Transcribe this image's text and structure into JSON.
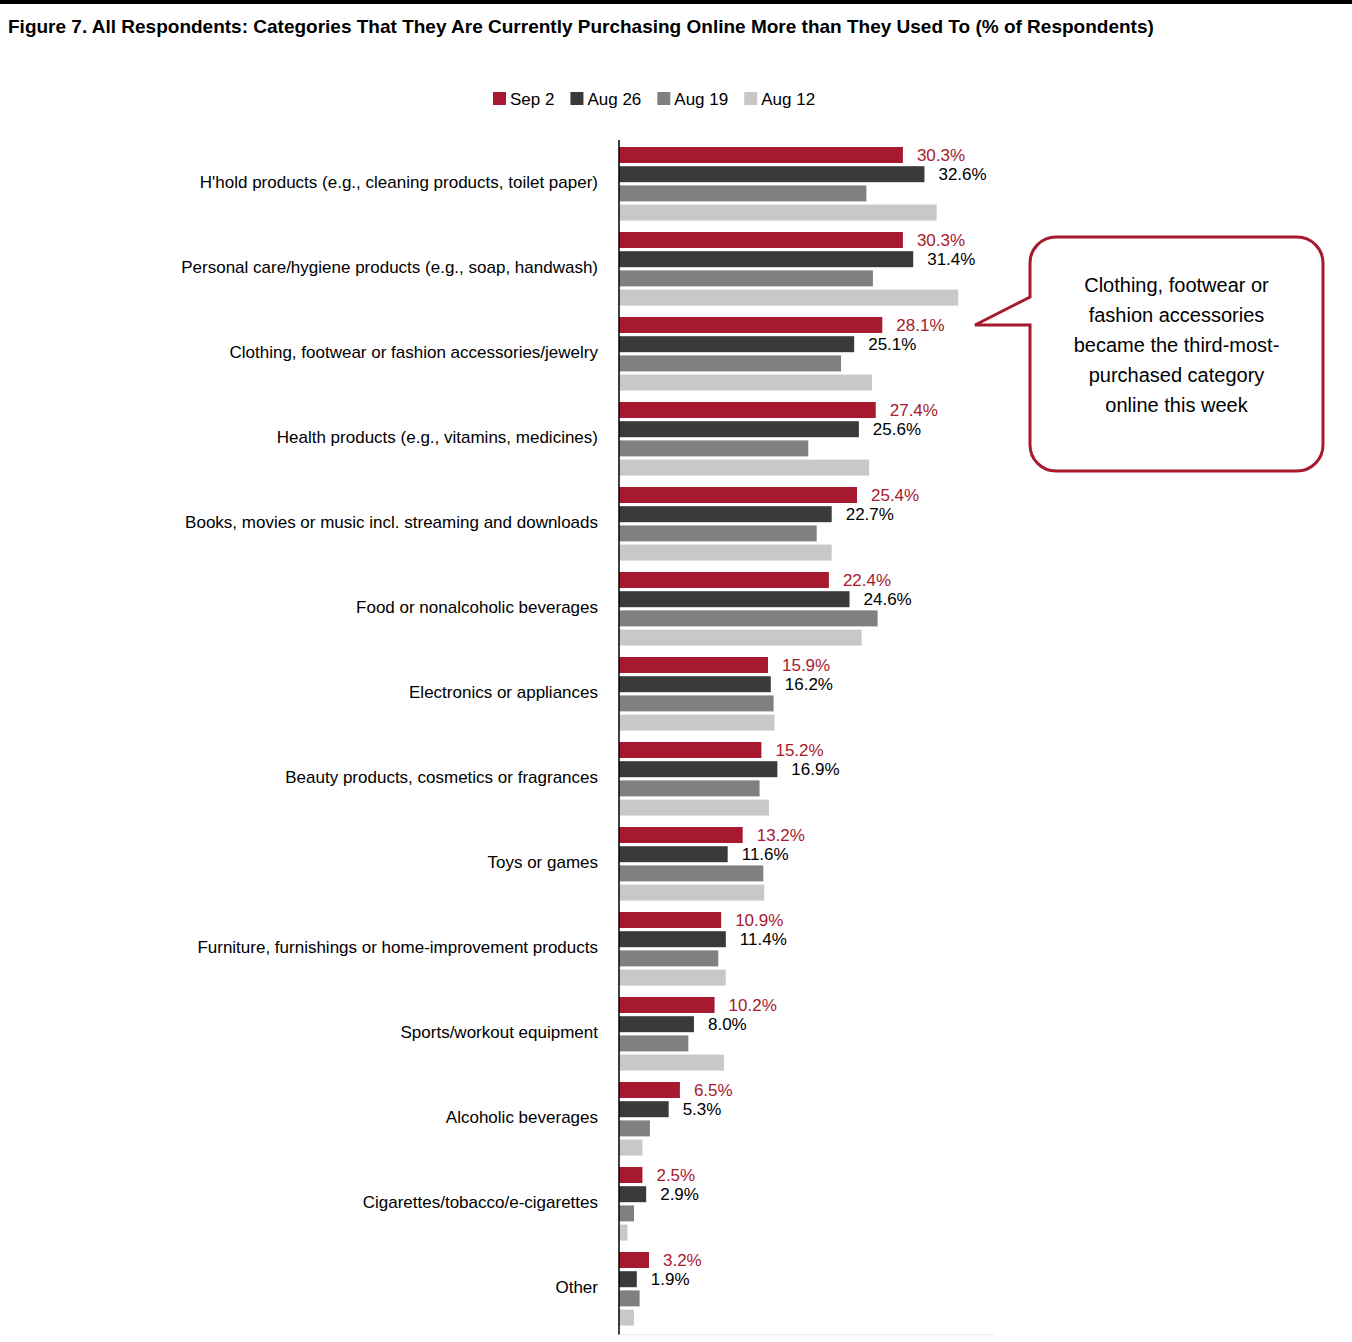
{
  "chart_data": {
    "type": "bar",
    "orientation": "horizontal",
    "title": "Figure 7. All Respondents: Categories That They Are Currently Purchasing Online More than They Used To (% of Respondents)",
    "categories": [
      "H'hold products (e.g., cleaning products, toilet paper)",
      "Personal care/hygiene products (e.g., soap, handwash)",
      "Clothing, footwear or fashion accessories/jewelry",
      "Health products (e.g., vitamins, medicines)",
      "Books, movies or music incl. streaming and downloads",
      "Food or nonalcoholic beverages",
      "Electronics or appliances",
      "Beauty products, cosmetics or fragrances",
      "Toys or games",
      "Furniture, furnishings or home-improvement products",
      "Sports/workout equipment",
      "Alcoholic beverages",
      "Cigarettes/tobacco/e-cigarettes",
      "Other"
    ],
    "series": [
      {
        "name": "Sep 2",
        "color": "#a6192e",
        "data_labels": true,
        "values": [
          30.3,
          30.3,
          28.1,
          27.4,
          25.4,
          22.4,
          15.9,
          15.2,
          13.2,
          10.9,
          10.2,
          6.5,
          2.5,
          3.2
        ],
        "value_labels": [
          "30.3%",
          "30.3%",
          "28.1%",
          "27.4%",
          "25.4%",
          "22.4%",
          "15.9%",
          "15.2%",
          "13.2%",
          "10.9%",
          "10.2%",
          "6.5%",
          "2.5%",
          "3.2%"
        ]
      },
      {
        "name": "Aug 26",
        "color": "#3a3a3a",
        "data_labels": true,
        "values": [
          32.6,
          31.4,
          25.1,
          25.6,
          22.7,
          24.6,
          16.2,
          16.9,
          11.6,
          11.4,
          8.0,
          5.3,
          2.9,
          1.9
        ],
        "value_labels": [
          "32.6%",
          "31.4%",
          "25.1%",
          "25.6%",
          "22.7%",
          "24.6%",
          "16.2%",
          "16.9%",
          "11.6%",
          "11.4%",
          "8.0%",
          "5.3%",
          "2.9%",
          "1.9%"
        ]
      },
      {
        "name": "Aug 19",
        "color": "#808080",
        "data_labels": false,
        "values": [
          26.4,
          27.1,
          23.7,
          20.2,
          21.1,
          27.6,
          16.5,
          15.0,
          15.4,
          10.6,
          7.4,
          3.3,
          1.6,
          2.2
        ]
      },
      {
        "name": "Aug 12",
        "color": "#c8c8c8",
        "data_labels": false,
        "values": [
          33.9,
          36.2,
          27.0,
          26.7,
          22.7,
          25.9,
          16.6,
          16.0,
          15.5,
          11.4,
          11.2,
          2.5,
          0.9,
          1.6
        ]
      }
    ],
    "xlim": [
      0,
      40
    ],
    "tick_labels": false,
    "grid": false,
    "legend": "top",
    "annotation": [
      "Clothing, footwear or",
      "fashion accessories",
      "became the third-most-",
      "purchased category",
      "online this week"
    ]
  }
}
